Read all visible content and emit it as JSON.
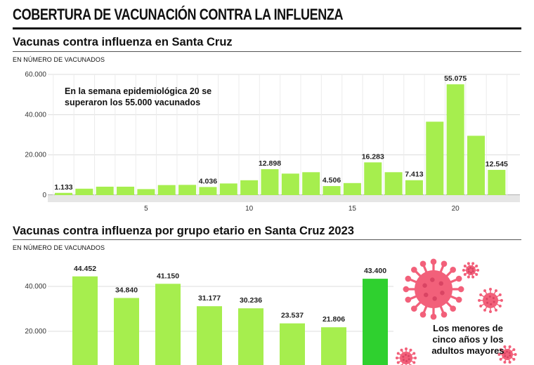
{
  "page": {
    "main_title": "COBERTURA DE VACUNACIÓN CONTRA LA INFLUENZA"
  },
  "chart_data": [
    {
      "type": "bar",
      "title": "Vacunas contra influenza en Santa Cruz",
      "ylabel": "EN NÚMERO DE VACUNADOS",
      "xlabel": "",
      "ylim": [
        0,
        60000
      ],
      "yticks": [
        0,
        20000,
        40000,
        60000
      ],
      "ytick_labels": [
        "0",
        "20.000",
        "40.000",
        "60.000"
      ],
      "x": [
        1,
        2,
        3,
        4,
        5,
        6,
        7,
        8,
        9,
        10,
        11,
        12,
        13,
        14,
        15,
        16,
        17,
        18,
        19,
        20,
        21,
        22
      ],
      "xticks": [
        5,
        10,
        15,
        20
      ],
      "xtick_labels": [
        "5",
        "10",
        "15",
        "20"
      ],
      "values": [
        1133,
        3200,
        4200,
        4200,
        3000,
        5000,
        5100,
        4036,
        5800,
        7400,
        12898,
        10700,
        11400,
        4506,
        6000,
        16283,
        11400,
        7413,
        36500,
        55075,
        29500,
        12545
      ],
      "data_labels": {
        "1": "1.133",
        "8": "4.036",
        "11": "12.898",
        "14": "4.506",
        "16": "16.283",
        "18": "7.413",
        "20": "55.075",
        "22": "12.545"
      },
      "colors": {
        "bar": "#a6ee4e"
      },
      "grid": true,
      "annotation": "En la semana epidemiológica 20 se superaron los 55.000 vacunados"
    },
    {
      "type": "bar",
      "title": "Vacunas contra influenza por grupo etario en Santa Cruz 2023",
      "ylabel": "EN NÚMERO DE VACUNADOS",
      "xlabel": "",
      "ylim": [
        0,
        60000
      ],
      "yticks": [
        20000,
        40000
      ],
      "ytick_labels": [
        "20.000",
        "40.000"
      ],
      "categories": [
        "",
        "",
        "",
        "",
        "",
        "",
        "",
        ""
      ],
      "values": [
        44452,
        34840,
        41150,
        31177,
        30236,
        23537,
        21806,
        43400
      ],
      "value_labels": [
        "44.452",
        "34.840",
        "41.150",
        "31.177",
        "30.236",
        "23.537",
        "21.806",
        "43.400"
      ],
      "colors": {
        "bar": "#a6ee4e",
        "highlight": "#2fd02f"
      },
      "highlight_index": 7,
      "grid": true,
      "side_note": "Los menores de cinco años y los adultos mayores"
    }
  ],
  "decor": {
    "virus_icon_color": "#f2607a"
  }
}
